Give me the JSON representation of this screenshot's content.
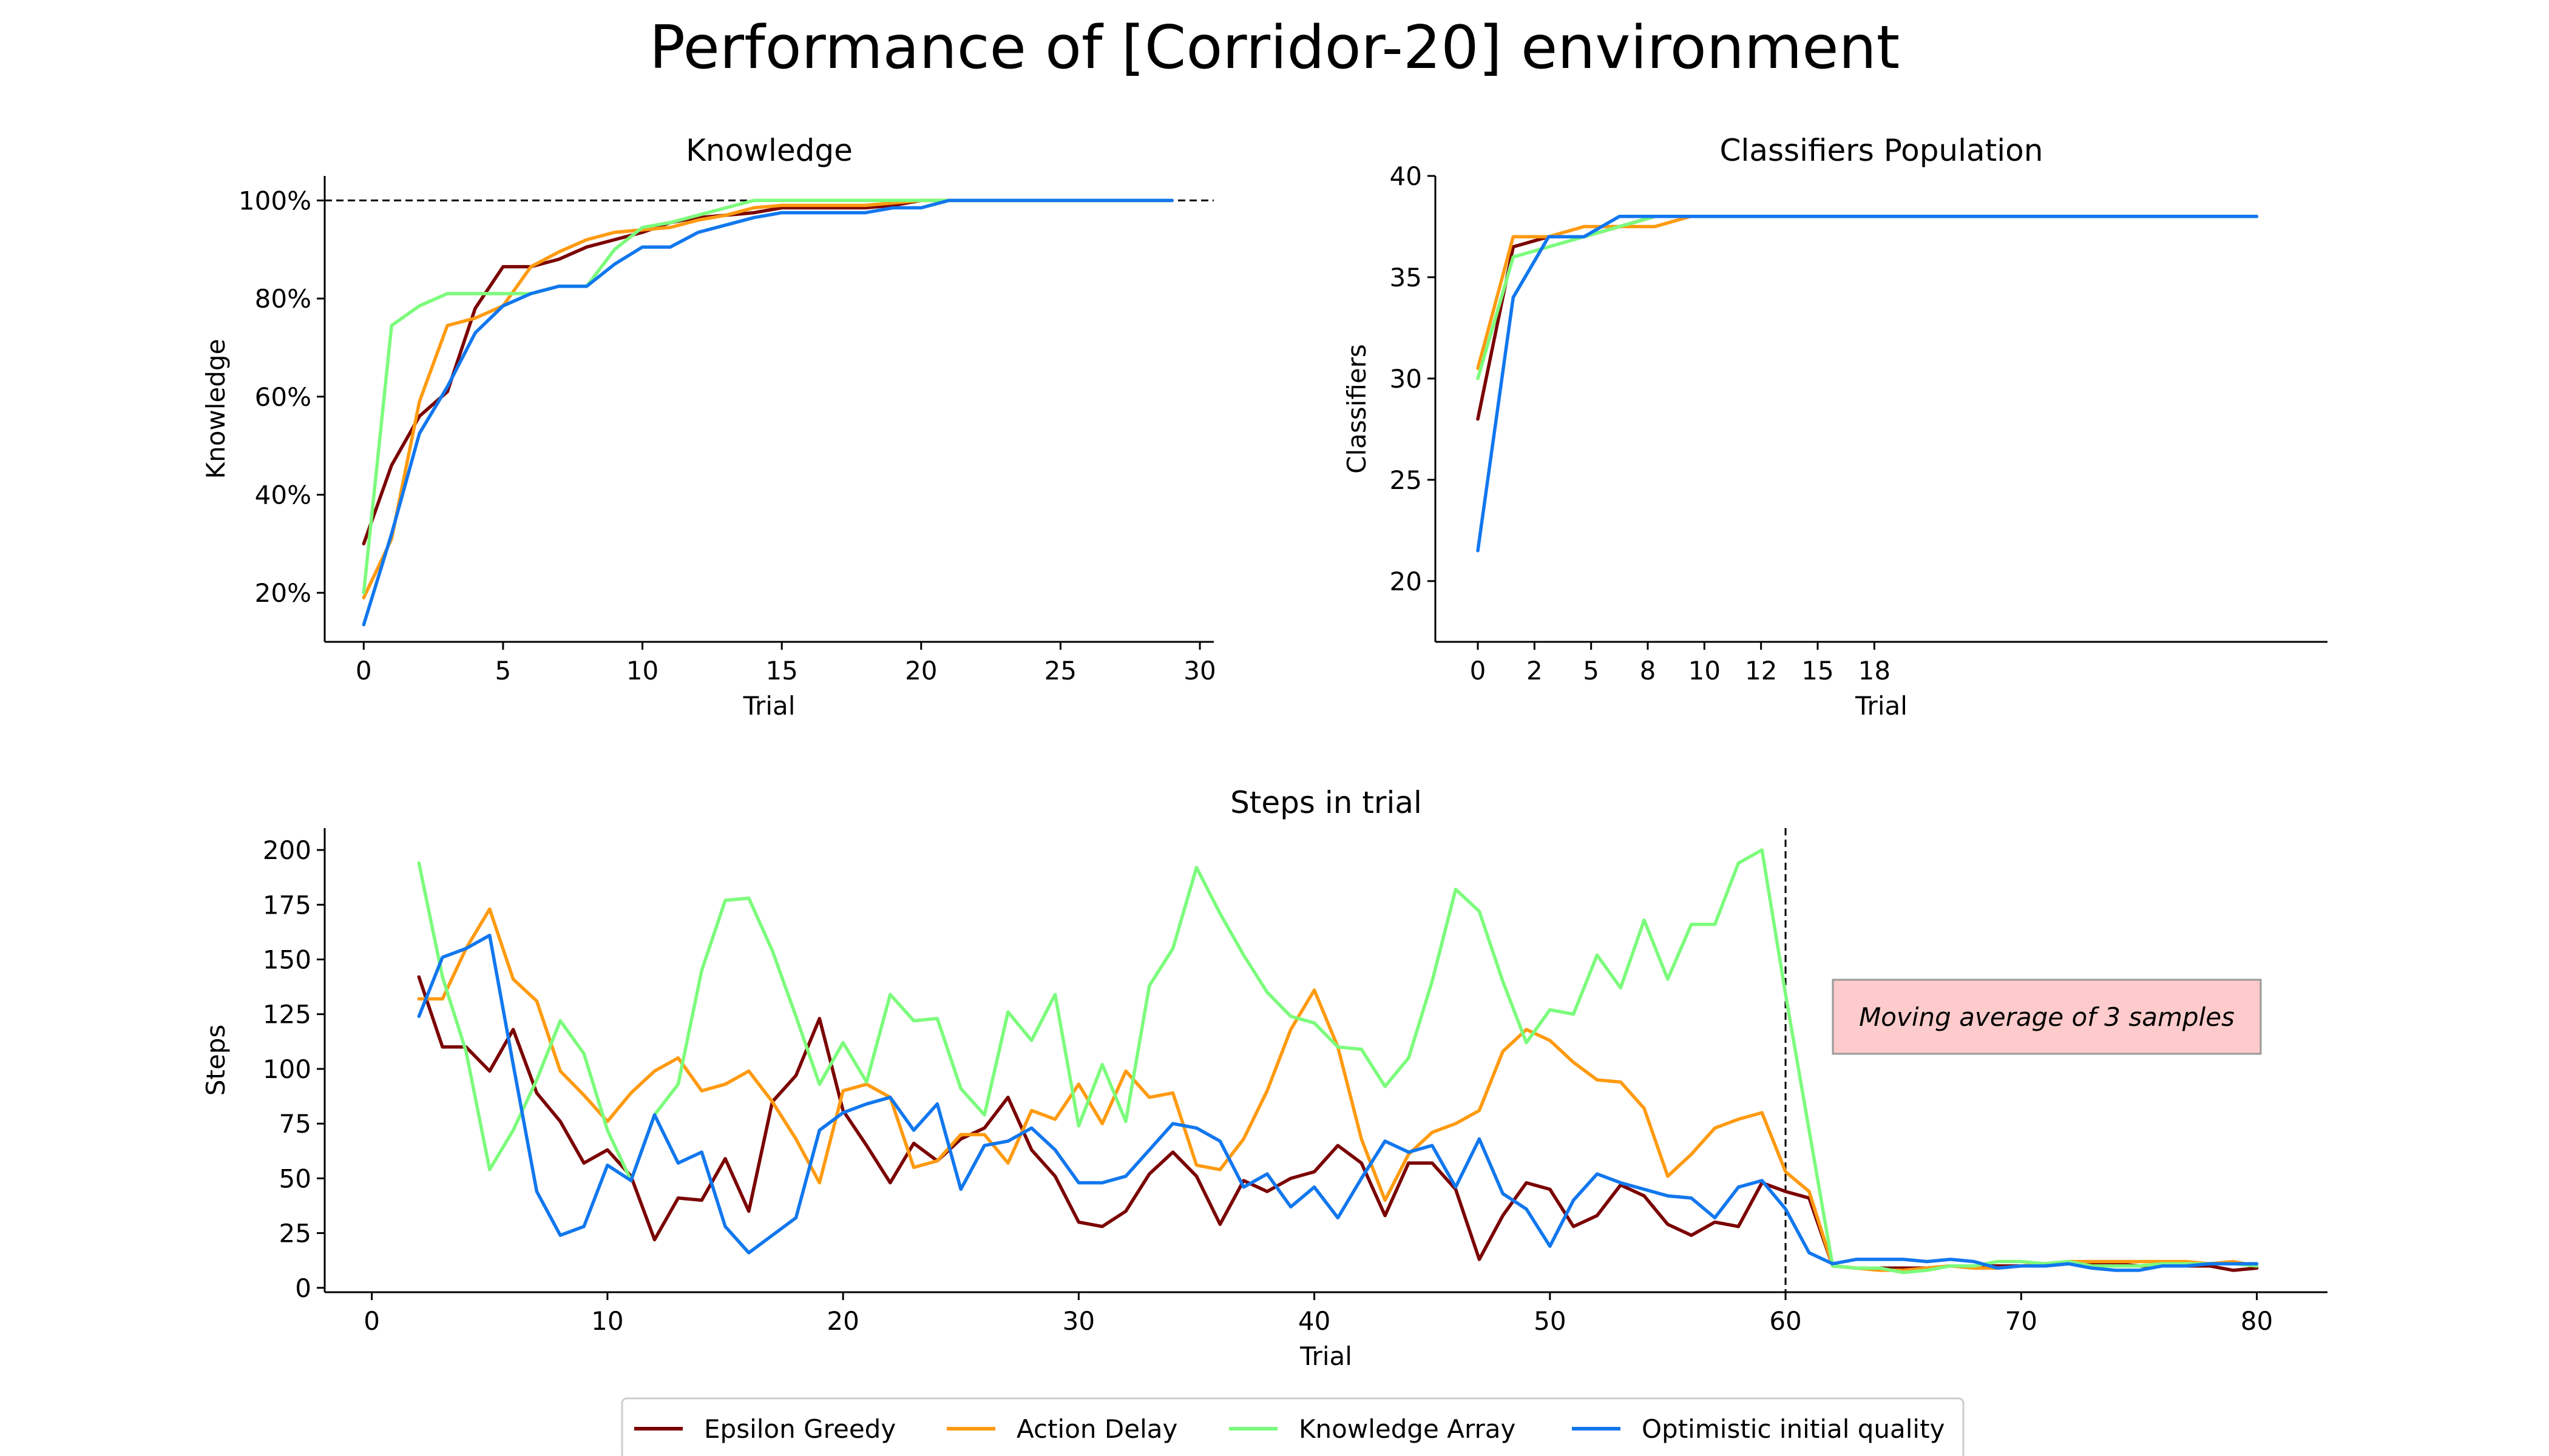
{
  "figure": {
    "title": "Performance of [Corridor-20] environment",
    "legend": {
      "placement": "bottom-center",
      "entries": [
        {
          "name": "Epsilon Greedy",
          "color": "#7b0000"
        },
        {
          "name": "Action Delay",
          "color": "#ff9a10"
        },
        {
          "name": "Knowledge Array",
          "color": "#7cfc7c"
        },
        {
          "name": "Optimistic initial quality",
          "color": "#1177ee"
        }
      ]
    }
  },
  "chart_data": [
    {
      "type": "line",
      "title": "Knowledge",
      "xlabel": "Trial",
      "ylabel": "Knowledge",
      "xlim": [
        -1.4,
        30.5
      ],
      "ylim": [
        0.1,
        1.05
      ],
      "x_ticks": [
        0,
        5,
        10,
        15,
        20,
        25,
        30
      ],
      "y_ticks": [
        0.2,
        0.4,
        0.6,
        0.8,
        1.0
      ],
      "y_tick_labels": [
        "20%",
        "40%",
        "60%",
        "80%",
        "100%"
      ],
      "reference_line": {
        "y": 1.0,
        "style": "dashed"
      },
      "x": [
        0,
        1,
        2,
        3,
        4,
        5,
        6,
        7,
        8,
        9,
        10,
        11,
        12,
        13,
        14,
        15,
        16,
        17,
        18,
        19,
        20,
        21,
        22,
        23,
        24,
        25,
        26,
        27,
        28,
        29
      ],
      "series": [
        {
          "name": "Epsilon Greedy",
          "values": [
            0.3,
            0.46,
            0.56,
            0.61,
            0.78,
            0.865,
            0.865,
            0.88,
            0.905,
            0.92,
            0.935,
            0.955,
            0.965,
            0.97,
            0.975,
            0.985,
            0.985,
            0.985,
            0.985,
            0.99,
            1.0,
            1.0,
            1.0,
            1.0,
            1.0,
            1.0,
            1.0,
            1.0,
            1.0,
            1.0
          ]
        },
        {
          "name": "Action Delay",
          "values": [
            0.19,
            0.31,
            0.59,
            0.745,
            0.76,
            0.785,
            0.865,
            0.895,
            0.92,
            0.935,
            0.94,
            0.945,
            0.96,
            0.97,
            0.985,
            0.99,
            0.99,
            0.99,
            0.99,
            0.995,
            1.0,
            1.0,
            1.0,
            1.0,
            1.0,
            1.0,
            1.0,
            1.0,
            1.0,
            1.0
          ]
        },
        {
          "name": "Knowledge Array",
          "values": [
            0.2,
            0.745,
            0.785,
            0.81,
            0.81,
            0.81,
            0.81,
            0.825,
            0.825,
            0.9,
            0.945,
            0.955,
            0.97,
            0.985,
            1.0,
            1.0,
            1.0,
            1.0,
            1.0,
            1.0,
            1.0,
            1.0,
            1.0,
            1.0,
            1.0,
            1.0,
            1.0,
            1.0,
            1.0,
            1.0
          ]
        },
        {
          "name": "Optimistic initial quality",
          "values": [
            0.135,
            0.32,
            0.525,
            0.62,
            0.73,
            0.785,
            0.81,
            0.825,
            0.825,
            0.87,
            0.905,
            0.905,
            0.935,
            0.95,
            0.965,
            0.975,
            0.975,
            0.975,
            0.975,
            0.985,
            0.985,
            1.0,
            1.0,
            1.0,
            1.0,
            1.0,
            1.0,
            1.0,
            1.0,
            1.0
          ]
        }
      ]
    },
    {
      "type": "line",
      "title": "Classifiers Population",
      "xlabel": "Trial",
      "ylabel": "Classifiers",
      "xlim": [
        -1.2,
        24.0
      ],
      "ylim": [
        17,
        40
      ],
      "x_ticks": [
        0,
        1.6,
        3.2,
        4.8,
        6.4,
        8.0,
        9.6,
        11.2
      ],
      "x_tick_labels": [
        "0",
        "2",
        "5",
        "8",
        "10",
        "12",
        "15",
        "18"
      ],
      "y_ticks": [
        20,
        25,
        30,
        35,
        40
      ],
      "x": [
        0,
        1,
        2,
        3,
        4,
        5,
        6,
        7,
        8,
        9,
        10,
        11,
        12,
        13,
        14,
        15,
        16,
        17,
        18,
        19,
        20,
        21,
        22
      ],
      "series": [
        {
          "name": "Epsilon Greedy",
          "values": [
            28,
            36.5,
            37,
            37,
            37.5,
            38,
            38,
            38,
            38,
            38,
            38,
            38,
            38,
            38,
            38,
            38,
            38,
            38,
            38,
            38,
            38,
            38,
            38
          ]
        },
        {
          "name": "Action Delay",
          "values": [
            30.5,
            37,
            37,
            37.5,
            37.5,
            37.5,
            38,
            38,
            38,
            38,
            38,
            38,
            38,
            38,
            38,
            38,
            38,
            38,
            38,
            38,
            38,
            38,
            38
          ]
        },
        {
          "name": "Knowledge Array",
          "values": [
            30,
            36,
            36.5,
            37,
            37.5,
            38,
            38,
            38,
            38,
            38,
            38,
            38,
            38,
            38,
            38,
            38,
            38,
            38,
            38,
            38,
            38,
            38,
            38
          ]
        },
        {
          "name": "Optimistic initial quality",
          "values": [
            21.5,
            34,
            37,
            37,
            38,
            38,
            38,
            38,
            38,
            38,
            38,
            38,
            38,
            38,
            38,
            38,
            38,
            38,
            38,
            38,
            38,
            38,
            38
          ]
        }
      ]
    },
    {
      "type": "line",
      "title": "Steps in trial",
      "xlabel": "Trial",
      "ylabel": "Steps",
      "xlim": [
        -2,
        83
      ],
      "ylim": [
        -2,
        210
      ],
      "x_ticks": [
        0,
        10,
        20,
        30,
        40,
        50,
        60,
        70,
        80
      ],
      "y_ticks": [
        0,
        25,
        50,
        75,
        100,
        125,
        150,
        175,
        200
      ],
      "reference_line": {
        "x": 60,
        "style": "dashed"
      },
      "annotation": "Moving average of 3 samples",
      "x_start": 2,
      "series": [
        {
          "name": "Epsilon Greedy",
          "values": [
            142,
            110,
            110,
            99,
            118,
            89,
            76,
            57,
            63,
            51,
            22,
            41,
            40,
            59,
            35,
            85,
            97,
            123,
            81,
            65,
            48,
            66,
            58,
            68,
            73,
            87,
            63,
            51,
            30,
            28,
            35,
            52,
            62,
            51,
            29,
            49,
            44,
            50,
            53,
            65,
            57,
            33,
            57,
            57,
            45,
            13,
            33,
            48,
            45,
            28,
            33,
            47,
            42,
            29,
            24,
            30,
            28,
            48,
            44,
            41,
            10,
            9,
            9,
            9,
            9,
            10,
            10,
            10,
            10,
            10,
            11,
            11,
            11,
            10,
            10,
            10,
            10,
            8,
            9
          ]
        },
        {
          "name": "Action Delay",
          "values": [
            132,
            132,
            155,
            173,
            141,
            131,
            99,
            88,
            76,
            89,
            99,
            105,
            90,
            93,
            99,
            85,
            68,
            48,
            90,
            93,
            87,
            55,
            58,
            70,
            70,
            57,
            81,
            77,
            93,
            75,
            99,
            87,
            89,
            56,
            54,
            68,
            90,
            118,
            136,
            110,
            68,
            40,
            61,
            71,
            75,
            81,
            108,
            118,
            113,
            103,
            95,
            94,
            82,
            51,
            61,
            73,
            77,
            80,
            53,
            44,
            10,
            9,
            8,
            8,
            9,
            10,
            9,
            9,
            10,
            11,
            12,
            12,
            12,
            12,
            12,
            12,
            11,
            12,
            10
          ]
        },
        {
          "name": "Knowledge Array",
          "values": [
            194,
            142,
            108,
            54,
            72,
            95,
            122,
            107,
            72,
            49,
            79,
            93,
            145,
            177,
            178,
            154,
            124,
            93,
            112,
            94,
            134,
            122,
            123,
            91,
            79,
            126,
            113,
            134,
            74,
            102,
            76,
            138,
            155,
            192,
            171,
            152,
            135,
            124,
            121,
            110,
            109,
            92,
            105,
            140,
            182,
            172,
            140,
            112,
            127,
            125,
            152,
            137,
            168,
            141,
            166,
            166,
            194,
            200,
            134,
            72,
            10,
            9,
            9,
            7,
            8,
            10,
            10,
            12,
            12,
            11,
            12,
            10,
            10,
            10,
            11,
            11,
            11,
            11,
            10
          ]
        },
        {
          "name": "Optimistic initial quality",
          "values": [
            124,
            151,
            155,
            161,
            102,
            44,
            24,
            28,
            56,
            49,
            79,
            57,
            62,
            28,
            16,
            24,
            32,
            72,
            80,
            84,
            87,
            72,
            84,
            45,
            65,
            67,
            73,
            63,
            48,
            48,
            51,
            63,
            75,
            73,
            67,
            46,
            52,
            37,
            46,
            32,
            50,
            67,
            62,
            65,
            46,
            68,
            43,
            36,
            19,
            40,
            52,
            48,
            45,
            42,
            41,
            32,
            46,
            49,
            36,
            16,
            11,
            13,
            13,
            13,
            12,
            13,
            12,
            9,
            10,
            10,
            11,
            9,
            8,
            8,
            10,
            10,
            11,
            11,
            11
          ]
        }
      ]
    }
  ]
}
